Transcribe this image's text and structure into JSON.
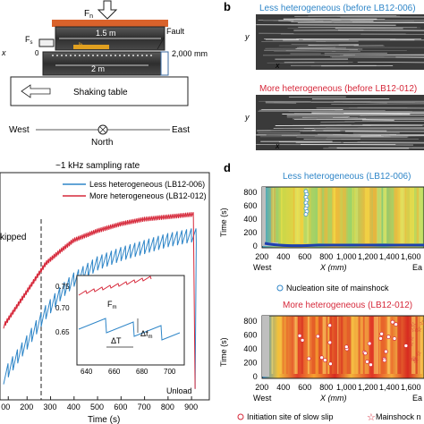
{
  "panel_labels": {
    "b": "b",
    "d": "d"
  },
  "apparatus": {
    "force_n": "F",
    "force_n_sub": "n",
    "force_s": "F",
    "force_s_sub": "s",
    "fault": "Fault",
    "len_top": "1.5 m",
    "len_bottom": "2 m",
    "len_right": "2,000 mm",
    "zero": "0",
    "x_label": "x",
    "arrow_b": "b",
    "table": "Shaking table",
    "west": "West",
    "east": "East",
    "north": "North"
  },
  "images_b": {
    "top_title": "Less heterogeneous (before LB12-006)",
    "bottom_title": "More heterogeneous (before LB12-012)",
    "y_label": "y",
    "x_label": "x"
  },
  "panel_c": {
    "sampling_note": "~1 kHz sampling rate",
    "skipped": "kipped",
    "unload": "Unload",
    "xlabel": "Time (s)",
    "legend": [
      {
        "name": "Less heterogeneous (LB12-006)",
        "color": "#2f86c8"
      },
      {
        "name": "More heterogeneous (LB12-012)",
        "color": "#d6283a"
      }
    ],
    "x_ticks": [
      "00",
      "200",
      "300",
      "400",
      "500",
      "600",
      "700",
      "800",
      "900"
    ],
    "inset": {
      "y_ticks": [
        "0.75",
        "0.70",
        "0.65"
      ],
      "x_ticks": [
        "640",
        "660",
        "680",
        "700"
      ],
      "fm_label": "F",
      "fm_sub": "m",
      "dT": "ΔT",
      "dF": "Δf",
      "dF_sub": "m"
    }
  },
  "chart_data": [
    {
      "type": "line",
      "xlabel": "Time (s)",
      "xlim": [
        100,
        930
      ],
      "series": [
        {
          "name": "Less heterogeneous (LB12-006)",
          "x": [
            100,
            200,
            280,
            350,
            400,
            500,
            600,
            700,
            800,
            900,
            905,
            915
          ],
          "y": [
            0.1,
            0.25,
            0.38,
            0.47,
            0.52,
            0.59,
            0.63,
            0.66,
            0.69,
            0.71,
            0.71,
            0.02
          ]
        },
        {
          "name": "More heterogeneous (LB12-012)",
          "x": [
            100,
            200,
            280,
            350,
            400,
            500,
            600,
            700,
            800,
            900,
            905,
            915
          ],
          "y": [
            0.3,
            0.45,
            0.57,
            0.63,
            0.67,
            0.71,
            0.74,
            0.76,
            0.77,
            0.78,
            0.78,
            0.02
          ]
        }
      ]
    },
    {
      "type": "heatmap",
      "title": "Less heterogeneous (LB12-006)",
      "xlabel": "X (mm)",
      "ylabel": "Time (s)",
      "x_ticks": [
        "200",
        "400",
        "600",
        "800",
        "1,000",
        "1,200",
        "1,400",
        "1,600"
      ],
      "y_ticks": [
        "800",
        "600",
        "400",
        "200",
        "0"
      ],
      "left_label": "West",
      "right_label": "Ea",
      "note": "Nucleation site of mainshock"
    },
    {
      "type": "heatmap",
      "title": "More heterogeneous (LB12-012)",
      "xlabel": "X (mm)",
      "ylabel": "Time (s)",
      "x_ticks": [
        "200",
        "400",
        "600",
        "800",
        "1,000",
        "1,200",
        "1,400",
        "1,600"
      ],
      "y_ticks": [
        "800",
        "600",
        "400",
        "200",
        "0"
      ],
      "left_label": "West",
      "right_label": "Ea",
      "legend_slow_slip": "Initiation site of slow slip",
      "legend_mainshock": "Mainshock n"
    }
  ]
}
